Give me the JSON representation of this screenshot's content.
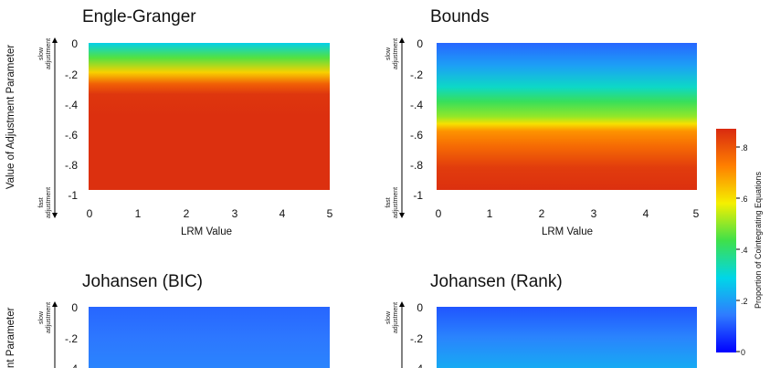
{
  "chart_data": {
    "type": "heatmap",
    "y_axis_label": "Value of Adjustment Parameter",
    "y_axis_label_lower": "nt Parameter",
    "x_axis_label": "LRM Value",
    "slow_label": [
      "slow",
      "adjustment"
    ],
    "fast_label": [
      "fast",
      "adjustment"
    ],
    "x_ticks": [
      "0",
      "1",
      "2",
      "3",
      "4",
      "5"
    ],
    "y_ticks": [
      "0",
      "-.2",
      "-.4",
      "-.6",
      "-.8",
      "-1"
    ],
    "x_range": [
      0,
      5
    ],
    "y_range": [
      -1,
      0
    ],
    "colorbar": {
      "label": "Proportion of Cointegrating Equations",
      "ticks": [
        "0",
        ".2",
        ".4",
        ".6",
        ".8"
      ],
      "range": [
        0,
        0.87
      ],
      "colors": [
        "#0000ff",
        "#2f7bff",
        "#00d6e8",
        "#3fe04a",
        "#f5f000",
        "#ff8000",
        "#d92a10"
      ]
    },
    "panels": [
      {
        "title": "Engle-Granger",
        "y": [
          0,
          -0.1,
          -0.2,
          -0.28,
          -0.35,
          -0.5,
          -0.7,
          -0.9,
          -1.0
        ],
        "values": [
          0.28,
          0.45,
          0.62,
          0.78,
          0.85,
          0.86,
          0.86,
          0.86,
          0.86
        ]
      },
      {
        "title": "Bounds",
        "y": [
          0,
          -0.15,
          -0.3,
          -0.4,
          -0.5,
          -0.55,
          -0.6,
          -0.7,
          -0.85,
          -1.0
        ],
        "values": [
          0.12,
          0.2,
          0.32,
          0.42,
          0.5,
          0.6,
          0.7,
          0.76,
          0.84,
          0.86
        ]
      },
      {
        "title": "Johansen (BIC)",
        "y": [
          0,
          -0.2,
          -0.4
        ],
        "values": [
          0.12,
          0.14,
          0.16
        ]
      },
      {
        "title": "Johansen (Rank)",
        "y": [
          0,
          -0.2,
          -0.4
        ],
        "values": [
          0.1,
          0.16,
          0.22
        ]
      }
    ]
  }
}
